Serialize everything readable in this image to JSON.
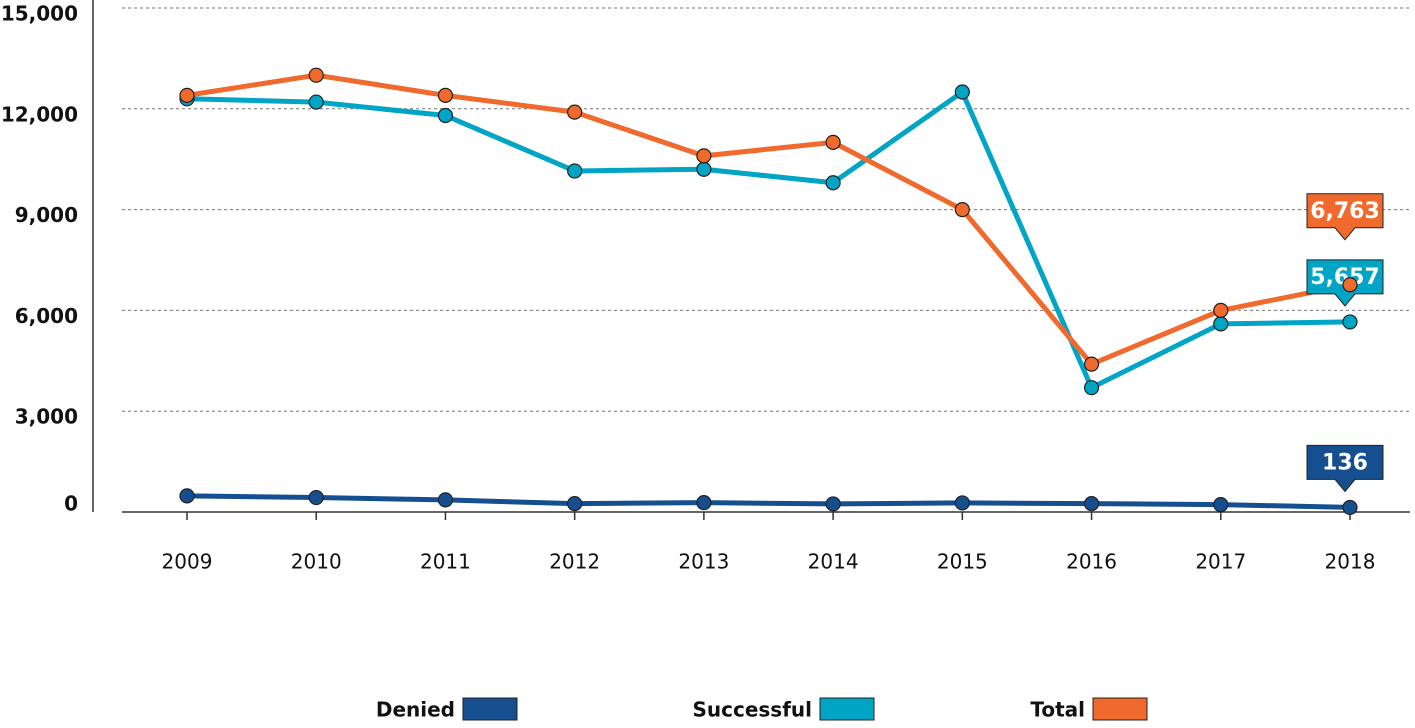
{
  "chart_data": {
    "type": "line",
    "categories": [
      "2009",
      "2010",
      "2011",
      "2012",
      "2013",
      "2014",
      "2015",
      "2016",
      "2017",
      "2018"
    ],
    "series": [
      {
        "name": "Denied",
        "color": "#164f90",
        "values": [
          480,
          430,
          360,
          250,
          280,
          240,
          270,
          250,
          220,
          136
        ],
        "value_labels": [
          null,
          null,
          null,
          null,
          null,
          null,
          null,
          null,
          null,
          "136"
        ]
      },
      {
        "name": "Successful",
        "color": "#00a5c6",
        "values": [
          12300,
          12200,
          11800,
          10150,
          10200,
          9800,
          12500,
          3700,
          5600,
          5657
        ],
        "value_labels": [
          null,
          null,
          null,
          null,
          null,
          null,
          null,
          null,
          null,
          "5,657"
        ]
      },
      {
        "name": "Total",
        "color": "#ef6a2c",
        "values": [
          12400,
          13000,
          12400,
          11900,
          10600,
          11000,
          9000,
          4400,
          6000,
          6763
        ],
        "value_labels": [
          null,
          null,
          null,
          null,
          null,
          null,
          null,
          null,
          null,
          "6,763"
        ]
      }
    ],
    "ylim": [
      0,
      15000
    ],
    "yticks": [
      0,
      {
        "value": 3000,
        "label": "3,000"
      },
      {
        "value": 6000,
        "label": "6,000"
      },
      {
        "value": 9000,
        "label": "9,000"
      },
      {
        "value": 12000,
        "label": "12,000"
      },
      {
        "value": 15000,
        "label": "15,000"
      }
    ],
    "grid": true
  }
}
